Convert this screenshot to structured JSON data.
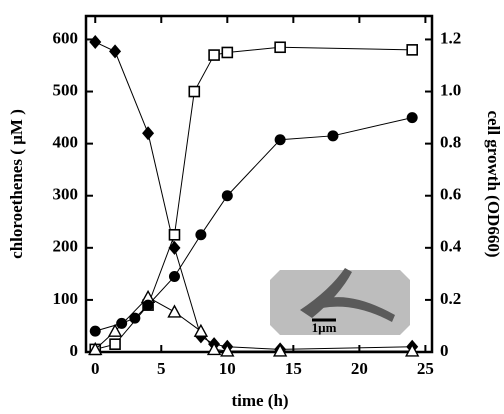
{
  "chart_data": {
    "type": "line",
    "x_label": "time (h)",
    "y_label": "chloroethenes ( µM )",
    "y2_label": "cell growth (OD660)",
    "inset_label": "1µm",
    "xlim": [
      -0.7,
      25.5
    ],
    "xticks": [
      0,
      5,
      10,
      15,
      20,
      25
    ],
    "ylim": [
      0,
      645
    ],
    "yticks": [
      0,
      100,
      200,
      300,
      400,
      500,
      600
    ],
    "y2lim": [
      0,
      1.29
    ],
    "y2ticks": [
      0,
      0.2,
      0.4,
      0.6,
      {
        "value": 0.8,
        "label": "0.8"
      },
      {
        "value": 1,
        "label": "1.0"
      },
      1.2
    ],
    "series": [
      {
        "marker": "diamond",
        "color": "#000000",
        "x": [
          0,
          1.5,
          4,
          6,
          8,
          9,
          10,
          14,
          24
        ],
        "values": [
          595,
          577,
          420,
          200,
          30,
          15,
          10,
          5,
          10
        ]
      },
      {
        "marker": "square",
        "color": "#000000",
        "x": [
          0,
          1.5,
          4,
          6,
          7.5,
          9,
          10,
          14,
          24
        ],
        "values": [
          5,
          15,
          90,
          225,
          500,
          570,
          575,
          585,
          580
        ]
      },
      {
        "marker": "triangle",
        "color": "#000000",
        "x": [
          0,
          1.5,
          4,
          6,
          8,
          9,
          10,
          14,
          24
        ],
        "values": [
          5,
          40,
          105,
          77,
          40,
          5,
          2,
          2,
          2
        ]
      },
      {
        "marker": "circle",
        "color": "#000000",
        "axis": "y2",
        "x": [
          0,
          2,
          3,
          4,
          6,
          8,
          10,
          14,
          18,
          24
        ],
        "values": [
          0.08,
          0.11,
          0.13,
          0.18,
          0.29,
          0.45,
          0.6,
          0.815,
          0.83,
          0.9
        ]
      }
    ]
  }
}
